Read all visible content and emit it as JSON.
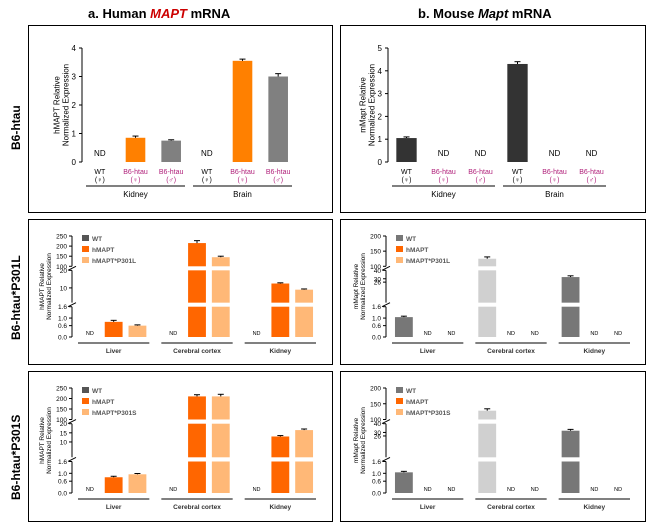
{
  "headers": {
    "left_prefix": "a. Human ",
    "left_gene": "MAPT",
    "left_suffix": " mRNA",
    "right_prefix": "b. Mouse ",
    "right_gene": "Mapt",
    "right_suffix": " mRNA",
    "left_gene_color": "#cc0000"
  },
  "row_labels": [
    "B6-htau",
    "B6-htau*P301L",
    "B6-htau*P301S"
  ],
  "colors": {
    "WT": "#555555",
    "hMAPT": "#ff6600",
    "mutant": "#ffb877",
    "htau_gray": "#808080",
    "mouse_dark": "#333333",
    "mouse_light": "#d0d0d0",
    "magenta": "#b0207a",
    "nd_text": "#000000"
  },
  "chart_data": [
    {
      "id": "a1",
      "type": "bar",
      "ylabel": "hMAPT Relative Normalized Expression",
      "ylim": [
        0,
        4
      ],
      "yticks": [
        "0",
        "1",
        "2",
        "3",
        "4"
      ],
      "bars": [
        {
          "label_top": "WT",
          "label_bot": "(♀)",
          "value": null,
          "nd": "ND",
          "color": "none"
        },
        {
          "label_top": "B6-htau",
          "label_bot": "(♀)",
          "value": 0.85,
          "err": 0.06,
          "color": "#ff8000"
        },
        {
          "label_top": "B6-htau",
          "label_bot": "(♂)",
          "value": 0.75,
          "err": 0.03,
          "color": "#808080"
        },
        {
          "label_top": "WT",
          "label_bot": "(♀)",
          "value": null,
          "nd": "ND",
          "color": "none"
        },
        {
          "label_top": "B6-htau",
          "label_bot": "(♀)",
          "value": 3.55,
          "err": 0.06,
          "color": "#ff8000"
        },
        {
          "label_top": "B6-htau",
          "label_bot": "(♂)",
          "value": 3.0,
          "err": 0.1,
          "color": "#808080"
        }
      ],
      "groups": [
        "Kidney",
        "Brain"
      ]
    },
    {
      "id": "b1",
      "type": "bar",
      "ylabel": "mMapt Relative Normalized Expression",
      "ylim": [
        0,
        5
      ],
      "yticks": [
        "0",
        "1",
        "2",
        "3",
        "4",
        "5"
      ],
      "bars": [
        {
          "label_top": "WT",
          "label_bot": "(♀)",
          "value": 1.05,
          "err": 0.05,
          "color": "#333333"
        },
        {
          "label_top": "B6-htau",
          "label_bot": "(♀)",
          "value": null,
          "nd": "ND",
          "color": "none"
        },
        {
          "label_top": "B6-htau",
          "label_bot": "(♂)",
          "value": null,
          "nd": "ND",
          "color": "none"
        },
        {
          "label_top": "WT",
          "label_bot": "(♀)",
          "value": 4.3,
          "err": 0.1,
          "color": "#333333"
        },
        {
          "label_top": "B6-htau",
          "label_bot": "(♀)",
          "value": null,
          "nd": "ND",
          "color": "none"
        },
        {
          "label_top": "B6-htau",
          "label_bot": "(♂)",
          "value": null,
          "nd": "ND",
          "color": "none"
        }
      ],
      "groups": [
        "Kidney",
        "Brain"
      ]
    },
    {
      "id": "a2",
      "type": "bar",
      "broken_axis": true,
      "ylabel": "hMAPT Relative Normalized Expression",
      "segments": [
        {
          "range": [
            0,
            1.6
          ],
          "ticks": [
            "0.0",
            "0.6",
            "1.0",
            "1.6"
          ],
          "tickvals": [
            0,
            0.6,
            1.0,
            1.6
          ]
        },
        {
          "range": [
            1.6,
            20
          ],
          "ticks": [
            "10",
            "20"
          ],
          "tickvals": [
            10,
            20
          ]
        },
        {
          "range": [
            100,
            250
          ],
          "ticks": [
            "100",
            "150",
            "200",
            "250"
          ],
          "tickvals": [
            100,
            150,
            200,
            250
          ]
        }
      ],
      "legend": [
        "WT",
        "hMAPT",
        "hMAPT*P301L"
      ],
      "categories": [
        "Liver",
        "Cerebral cortex",
        "Kidney"
      ],
      "series": [
        {
          "name": "WT",
          "values": [
            null,
            null,
            null
          ],
          "color": "#555555"
        },
        {
          "name": "hMAPT",
          "values": [
            0.8,
            215,
            12.5
          ],
          "err": [
            0.08,
            12,
            0.4
          ],
          "color": "#ff6600"
        },
        {
          "name": "hMAPT*P301L",
          "values": [
            0.6,
            145,
            9
          ],
          "err": [
            0.04,
            5,
            0.4
          ],
          "color": "#ffb877"
        }
      ],
      "nd_label": "ND"
    },
    {
      "id": "b2",
      "type": "bar",
      "broken_axis": true,
      "ylabel": "mMapt Relative Normalized Expression",
      "segments": [
        {
          "range": [
            0,
            1.6
          ],
          "ticks": [
            "0.0",
            "0.6",
            "1.0",
            "1.6"
          ],
          "tickvals": [
            0,
            0.6,
            1.0,
            1.6
          ]
        },
        {
          "range": [
            1.6,
            40
          ],
          "ticks": [
            "26",
            "30",
            "40"
          ],
          "tickvals": [
            26,
            30,
            40
          ]
        },
        {
          "range": [
            100,
            200
          ],
          "ticks": [
            "100",
            "150",
            "200"
          ],
          "tickvals": [
            100,
            150,
            200
          ]
        }
      ],
      "legend": [
        "WT",
        "hMAPT",
        "hMAPT*P301L"
      ],
      "categories": [
        "Liver",
        "Cerebral cortex",
        "Kidney"
      ],
      "series": [
        {
          "name": "WT",
          "values": [
            1.05,
            125,
            32
          ],
          "err": [
            0.05,
            6,
            1.5
          ],
          "color": "#777777"
        },
        {
          "name": "hMAPT",
          "values": [
            null,
            null,
            null
          ],
          "color": "#ff6600"
        },
        {
          "name": "hMAPT*P301L",
          "values": [
            null,
            null,
            null
          ],
          "color": "#ffb877"
        }
      ],
      "cortex_color": "#d0d0d0",
      "nd_label": "ND"
    },
    {
      "id": "a3",
      "type": "bar",
      "broken_axis": true,
      "ylabel": "hMAPT Relative Normalized Expression",
      "segments": [
        {
          "range": [
            0,
            1.6
          ],
          "ticks": [
            "0.0",
            "0.6",
            "1.0",
            "1.6"
          ],
          "tickvals": [
            0,
            0.6,
            1.0,
            1.6
          ]
        },
        {
          "range": [
            1.6,
            20
          ],
          "ticks": [
            "10",
            "15",
            "20"
          ],
          "tickvals": [
            10,
            15,
            20
          ]
        },
        {
          "range": [
            100,
            250
          ],
          "ticks": [
            "100",
            "150",
            "200",
            "250"
          ],
          "tickvals": [
            100,
            150,
            200,
            250
          ]
        }
      ],
      "legend": [
        "WT",
        "hMAPT",
        "hMAPT*P301S"
      ],
      "categories": [
        "Liver",
        "Cerebral cortex",
        "Kidney"
      ],
      "series": [
        {
          "name": "WT",
          "values": [
            null,
            null,
            null
          ],
          "color": "#555555"
        },
        {
          "name": "hMAPT",
          "values": [
            0.8,
            210,
            13
          ],
          "err": [
            0.05,
            8,
            0.5
          ],
          "color": "#ff6600"
        },
        {
          "name": "hMAPT*P301S",
          "values": [
            0.95,
            210,
            16.5
          ],
          "err": [
            0.04,
            10,
            0.6
          ],
          "color": "#ffb877"
        }
      ],
      "nd_label": "ND"
    },
    {
      "id": "b3",
      "type": "bar",
      "broken_axis": true,
      "ylabel": "mMapt Relative Normalized Expression",
      "segments": [
        {
          "range": [
            0,
            1.6
          ],
          "ticks": [
            "0.0",
            "0.6",
            "1.0",
            "1.6"
          ],
          "tickvals": [
            0,
            0.6,
            1.0,
            1.6
          ]
        },
        {
          "range": [
            1.6,
            40
          ],
          "ticks": [
            "26",
            "30",
            "40"
          ],
          "tickvals": [
            26,
            30,
            40
          ]
        },
        {
          "range": [
            100,
            200
          ],
          "ticks": [
            "100",
            "150",
            "200"
          ],
          "tickvals": [
            100,
            150,
            200
          ]
        }
      ],
      "legend": [
        "WT",
        "hMAPT",
        "hMAPT*P301S"
      ],
      "categories": [
        "Liver",
        "Cerebral cortex",
        "Kidney"
      ],
      "series": [
        {
          "name": "WT",
          "values": [
            1.05,
            128,
            32
          ],
          "err": [
            0.05,
            6,
            1.5
          ],
          "color": "#777777"
        },
        {
          "name": "hMAPT",
          "values": [
            null,
            null,
            null
          ],
          "color": "#ff6600"
        },
        {
          "name": "hMAPT*P301S",
          "values": [
            null,
            null,
            null
          ],
          "color": "#ffb877"
        }
      ],
      "cortex_color": "#d0d0d0",
      "nd_label": "ND"
    }
  ]
}
